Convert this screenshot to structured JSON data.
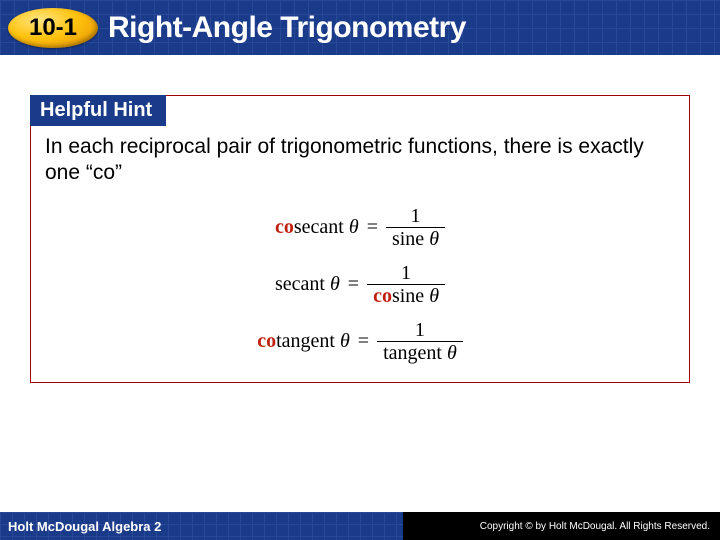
{
  "header": {
    "section_number": "10-1",
    "title": "Right-Angle Trigonometry",
    "bg_color": "#1a3a8a",
    "grid_color": "#2a4a9a",
    "badge_colors": [
      "#ffe680",
      "#ffc20e",
      "#e08b00"
    ]
  },
  "hint": {
    "label": "Helpful Hint",
    "label_bg": "#1a3a8a",
    "border_color": "#a00000",
    "text": "In each reciprocal pair of trigonometric functions, there is exactly one “co”",
    "co_color": "#c02010",
    "equations": [
      {
        "left_co": "co",
        "left_rest": "secant",
        "theta": "θ",
        "num": "1",
        "den_co": "",
        "den_rest": "sine",
        "den_theta": "θ"
      },
      {
        "left_co": "",
        "left_rest": "secant",
        "theta": "θ",
        "num": "1",
        "den_co": "co",
        "den_rest": "sine",
        "den_theta": "θ"
      },
      {
        "left_co": "co",
        "left_rest": "tangent",
        "theta": "θ",
        "num": "1",
        "den_co": "",
        "den_rest": "tangent",
        "den_theta": "θ"
      }
    ]
  },
  "footer": {
    "book": "Holt McDougal Algebra 2",
    "copyright": "Copyright © by Holt McDougal. All Rights Reserved.",
    "left_bg": "#1a3a8a",
    "right_bg": "#000000"
  }
}
